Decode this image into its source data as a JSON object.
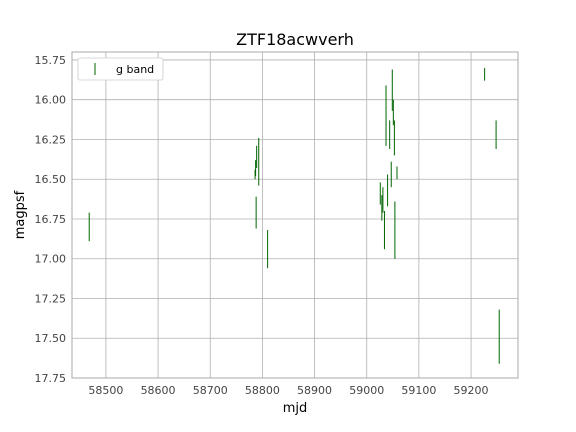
{
  "chart_data": {
    "type": "scatter",
    "title": "ZTF18acwverh",
    "xlabel": "mjd",
    "ylabel": "magpsf",
    "xlim": [
      58435,
      59290
    ],
    "ylim": [
      17.75,
      15.7
    ],
    "y_inverted": true,
    "grid": true,
    "legend_position": "top-left",
    "x_ticks": [
      58500,
      58600,
      58700,
      58800,
      58900,
      59000,
      59100,
      59200
    ],
    "y_ticks": [
      15.75,
      16.0,
      16.25,
      16.5,
      16.75,
      17.0,
      17.25,
      17.5,
      17.75
    ],
    "series": [
      {
        "name": "g band",
        "color": "#006400",
        "marker": "errorbar",
        "points": [
          {
            "x": 58468,
            "y": 16.8,
            "err": 0.09
          },
          {
            "x": 58786,
            "y": 16.47,
            "err": 0.03
          },
          {
            "x": 58787,
            "y": 16.43,
            "err": 0.05
          },
          {
            "x": 58788,
            "y": 16.71,
            "err": 0.1
          },
          {
            "x": 58789,
            "y": 16.36,
            "err": 0.07
          },
          {
            "x": 58793,
            "y": 16.39,
            "err": 0.15
          },
          {
            "x": 58810,
            "y": 16.94,
            "err": 0.12
          },
          {
            "x": 59026,
            "y": 16.59,
            "err": 0.07
          },
          {
            "x": 59029,
            "y": 16.68,
            "err": 0.08
          },
          {
            "x": 59031,
            "y": 16.63,
            "err": 0.08
          },
          {
            "x": 59034,
            "y": 16.82,
            "err": 0.12
          },
          {
            "x": 59037,
            "y": 16.1,
            "err": 0.19
          },
          {
            "x": 59040,
            "y": 16.57,
            "err": 0.1
          },
          {
            "x": 59044,
            "y": 16.22,
            "err": 0.09
          },
          {
            "x": 59047,
            "y": 16.47,
            "err": 0.08
          },
          {
            "x": 59049,
            "y": 15.94,
            "err": 0.13
          },
          {
            "x": 59051,
            "y": 16.08,
            "err": 0.08
          },
          {
            "x": 59053,
            "y": 16.24,
            "err": 0.11
          },
          {
            "x": 59054,
            "y": 16.82,
            "err": 0.18
          },
          {
            "x": 59058,
            "y": 16.46,
            "err": 0.04
          },
          {
            "x": 59226,
            "y": 15.84,
            "err": 0.04
          },
          {
            "x": 59248,
            "y": 16.22,
            "err": 0.09
          },
          {
            "x": 59254,
            "y": 17.49,
            "err": 0.17
          }
        ]
      }
    ]
  }
}
